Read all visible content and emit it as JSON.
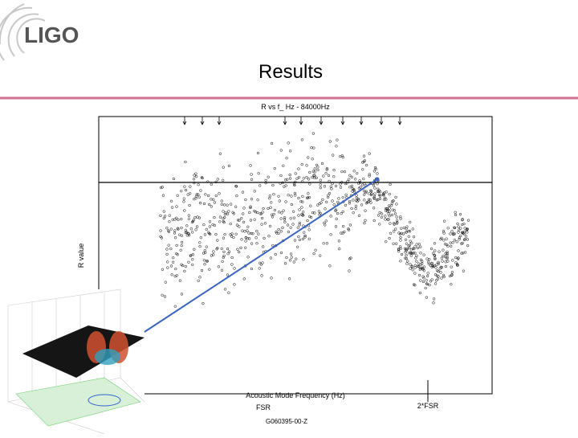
{
  "header": {
    "logo": "LIGO",
    "title": "Results"
  },
  "figure": {
    "title": "R vs f_  Hz - 84000Hz",
    "y_label": "R value",
    "x_label": "Acoustic Mode Frequency (Hz)",
    "markers": [
      "FSR",
      "2*FSR"
    ],
    "document_id": "G060395-00-Z"
  }
}
